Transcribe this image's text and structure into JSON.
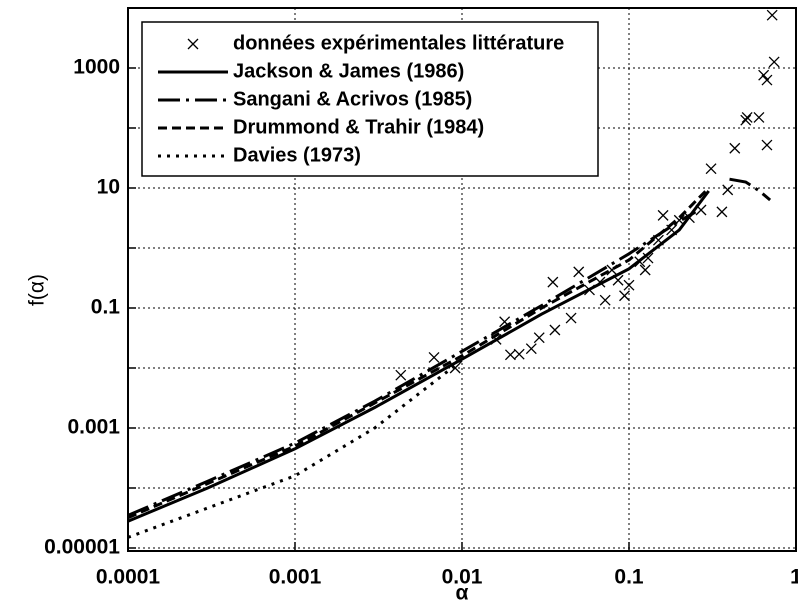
{
  "chart_data": {
    "type": "line",
    "x_label": "α",
    "y_label": "f(α)",
    "xlog": true,
    "ylog": true,
    "grid": true,
    "legend": "upper left",
    "xlim": [
      0.0001,
      1
    ],
    "ylim": [
      1e-05,
      10000
    ],
    "xticks": [
      0.0001,
      0.001,
      0.01,
      0.1,
      1
    ],
    "yticks": [
      1e-05,
      0.001,
      0.1,
      10,
      1000
    ],
    "y_minor_ticks": [
      0.0001,
      0.01,
      1,
      100
    ],
    "series": [
      {
        "name": "données expérimentales littérature",
        "type": "scatter",
        "color": "#000000",
        "x": [
          0.0043,
          0.0068,
          0.0091,
          0.016,
          0.018,
          0.0195,
          0.022,
          0.026,
          0.029,
          0.035,
          0.036,
          0.045,
          0.05,
          0.058,
          0.067,
          0.072,
          0.079,
          0.086,
          0.094,
          0.1,
          0.116,
          0.125,
          0.13,
          0.15,
          0.16,
          0.18,
          0.2,
          0.23,
          0.27,
          0.31,
          0.36,
          0.39,
          0.43,
          0.5,
          0.51,
          0.6,
          0.64,
          0.67,
          0.67,
          0.74,
          0.72
        ],
        "values": [
          0.0076,
          0.015,
          0.01,
          0.03,
          0.059,
          0.0166,
          0.017,
          0.021,
          0.032,
          0.27,
          0.043,
          0.068,
          0.4,
          0.2,
          0.27,
          0.135,
          0.43,
          0.29,
          0.16,
          0.24,
          0.59,
          0.43,
          0.68,
          1.35,
          3.5,
          2,
          2.9,
          3.2,
          4.3,
          21,
          4,
          9.3,
          46,
          135,
          150,
          150,
          760,
          630,
          52,
          1260,
          7600
        ]
      },
      {
        "name": "Jackson & James (1986)",
        "type": "line",
        "color": "#000000",
        "dash": "solid",
        "x": [
          0.0001,
          0.0003,
          0.001,
          0.003,
          0.01,
          0.03,
          0.1,
          0.2,
          0.3
        ],
        "values": [
          2.8e-05,
          0.0001,
          0.00045,
          0.0022,
          0.014,
          0.079,
          0.45,
          2,
          8.9
        ]
      },
      {
        "name": "Sangani & Acrivos (1985)",
        "type": "line",
        "color": "#000000",
        "dash": "longdash",
        "x": [
          0.0001,
          0.0003,
          0.001,
          0.003,
          0.01,
          0.03,
          0.1,
          0.2,
          0.25,
          0.3,
          0.4,
          0.5,
          0.6,
          0.7
        ],
        "values": [
          3.5e-05,
          0.00013,
          0.00056,
          0.0028,
          0.019,
          0.11,
          0.8,
          2.8,
          4,
          null,
          14,
          12.6,
          9,
          6.3
        ]
      },
      {
        "name": "Drummond & Trahir (1984)",
        "type": "line",
        "color": "#000000",
        "dash": "dash",
        "x": [
          0.0001,
          0.001,
          0.01,
          0.03,
          0.1,
          0.2,
          0.3
        ],
        "values": [
          3.2e-05,
          0.0005,
          0.016,
          0.1,
          0.63,
          3.2,
          10
        ]
      },
      {
        "name": "Davies (1973)",
        "type": "line",
        "color": "#000000",
        "dash": "dot",
        "x": [
          0.0001,
          0.001,
          0.003,
          0.01
        ],
        "values": [
          1.5e-05,
          0.00016,
          0.001,
          0.0135
        ]
      }
    ]
  }
}
